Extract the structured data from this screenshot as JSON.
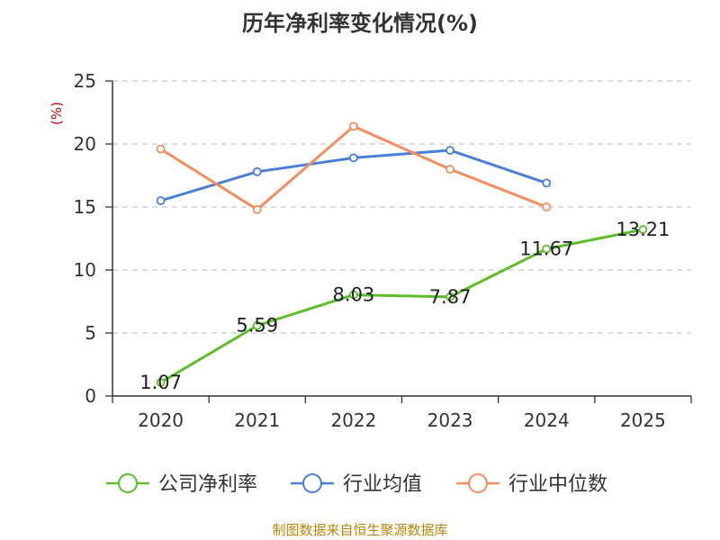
{
  "chart_data": {
    "type": "line",
    "title": "历年净利率变化情况(%)",
    "ylabel": "(%)",
    "xlabel": "",
    "categories": [
      "2020",
      "2021",
      "2022",
      "2023",
      "2024",
      "2025"
    ],
    "ylim": [
      0,
      25
    ],
    "yticks": [
      "0",
      "5",
      "10",
      "15",
      "20",
      "25"
    ],
    "grid": "horizontal dashed",
    "legend_position": "bottom",
    "series": [
      {
        "name": "公司净利率",
        "color": "#5cbf2a",
        "values": [
          1.07,
          5.59,
          8.03,
          7.87,
          11.67,
          13.21
        ],
        "labels": [
          "1.07",
          "5.59",
          "8.03",
          "7.87",
          "11.67",
          "13.21"
        ]
      },
      {
        "name": "行业均值",
        "color": "#4a7fd8",
        "values": [
          15.5,
          17.8,
          18.9,
          19.5,
          16.9,
          null
        ],
        "labels": []
      },
      {
        "name": "行业中位数",
        "color": "#f58d5e",
        "values": [
          19.6,
          14.8,
          21.4,
          18.0,
          15.0,
          null
        ],
        "labels": []
      }
    ]
  },
  "footer": {
    "source": "制图数据来自恒生聚源数据库"
  }
}
